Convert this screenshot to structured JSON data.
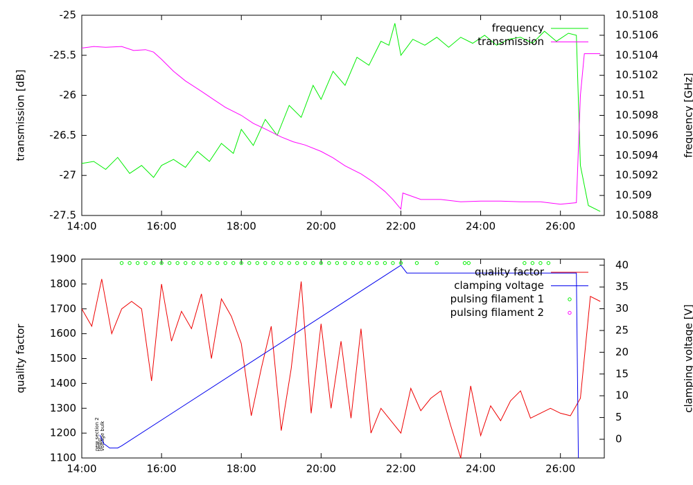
{
  "chart_data": [
    {
      "type": "line",
      "y_label": "transmission [dB]",
      "y2_label": "frequency [GHz]",
      "xlim": [
        14,
        27.1
      ],
      "xticks": [
        {
          "value": 14,
          "label": "14:00"
        },
        {
          "value": 16,
          "label": "16:00"
        },
        {
          "value": 18,
          "label": "18:00"
        },
        {
          "value": 20,
          "label": "20:00"
        },
        {
          "value": 22,
          "label": "22:00"
        },
        {
          "value": 24,
          "label": "24:00"
        },
        {
          "value": 26,
          "label": "26:00"
        }
      ],
      "ylim": [
        -27.5,
        -25
      ],
      "yticks": [
        -27.5,
        -27,
        -26.5,
        -26,
        -25.5,
        -25
      ],
      "y2lim": [
        10.5088,
        10.5108
      ],
      "y2ticks": [
        10.5088,
        10.509,
        10.5092,
        10.5094,
        10.5096,
        10.5098,
        10.51,
        10.5102,
        10.5104,
        10.5106,
        10.5108
      ],
      "legend": "top-right",
      "grid": false,
      "series": [
        {
          "name": "frequency",
          "color": "#00ee00",
          "axis": "y2",
          "x": [
            14.0,
            14.3,
            14.6,
            14.9,
            15.2,
            15.5,
            15.8,
            16.0,
            16.3,
            16.6,
            16.9,
            17.2,
            17.5,
            17.8,
            18.0,
            18.3,
            18.6,
            18.9,
            19.2,
            19.5,
            19.8,
            20.0,
            20.3,
            20.6,
            20.9,
            21.2,
            21.5,
            21.7,
            21.85,
            22.0,
            22.3,
            22.6,
            22.9,
            23.2,
            23.5,
            23.8,
            24.1,
            24.4,
            24.7,
            25.0,
            25.3,
            25.6,
            25.9,
            26.2,
            26.4,
            26.5,
            26.7,
            27.0
          ],
          "values": [
            10.50932,
            10.50934,
            10.50926,
            10.50938,
            10.50922,
            10.5093,
            10.50918,
            10.5093,
            10.50936,
            10.50928,
            10.50944,
            10.50934,
            10.50952,
            10.50942,
            10.50966,
            10.5095,
            10.50976,
            10.5096,
            10.5099,
            10.50978,
            10.5101,
            10.50996,
            10.51024,
            10.5101,
            10.51038,
            10.5103,
            10.51054,
            10.5105,
            10.51072,
            10.5104,
            10.51056,
            10.5105,
            10.51058,
            10.51048,
            10.51058,
            10.51052,
            10.5106,
            10.5105,
            10.51056,
            10.51058,
            10.51052,
            10.51064,
            10.51054,
            10.51062,
            10.5106,
            10.5093,
            10.5089,
            10.50884
          ]
        },
        {
          "name": "transmission",
          "color": "#ff00ff",
          "axis": "y",
          "x": [
            14.0,
            14.3,
            14.6,
            15.0,
            15.3,
            15.6,
            15.8,
            16.0,
            16.3,
            16.6,
            17.0,
            17.3,
            17.6,
            18.0,
            18.3,
            18.6,
            19.0,
            19.3,
            19.6,
            20.0,
            20.3,
            20.6,
            21.0,
            21.3,
            21.6,
            21.8,
            22.0,
            22.05,
            22.5,
            23.0,
            23.5,
            24.0,
            24.5,
            25.0,
            25.5,
            26.0,
            26.4,
            26.5,
            26.6,
            27.0
          ],
          "values": [
            -25.41,
            -25.39,
            -25.4,
            -25.39,
            -25.44,
            -25.43,
            -25.46,
            -25.55,
            -25.7,
            -25.82,
            -25.95,
            -26.05,
            -26.15,
            -26.25,
            -26.35,
            -26.42,
            -26.52,
            -26.58,
            -26.62,
            -26.7,
            -26.78,
            -26.88,
            -26.98,
            -27.08,
            -27.2,
            -27.3,
            -27.42,
            -27.22,
            -27.3,
            -27.3,
            -27.33,
            -27.32,
            -27.32,
            -27.33,
            -27.33,
            -27.36,
            -27.34,
            -26.0,
            -25.48,
            -25.48
          ]
        }
      ]
    },
    {
      "type": "line",
      "y_label": "quality factor",
      "y2_label": "clamping voltage [V]",
      "xlim": [
        14,
        27.1
      ],
      "xticks": [
        {
          "value": 14,
          "label": "14:00"
        },
        {
          "value": 16,
          "label": "16:00"
        },
        {
          "value": 18,
          "label": "18:00"
        },
        {
          "value": 20,
          "label": "20:00"
        },
        {
          "value": 22,
          "label": "22:00"
        },
        {
          "value": 24,
          "label": "24:00"
        },
        {
          "value": 26,
          "label": "26:00"
        }
      ],
      "ylim": [
        1100,
        1900
      ],
      "yticks": [
        1100,
        1200,
        1300,
        1400,
        1500,
        1600,
        1700,
        1800,
        1900
      ],
      "y2lim": [
        -4.3,
        41.4
      ],
      "y2ticks": [
        0,
        5,
        10,
        15,
        20,
        25,
        30,
        35,
        40
      ],
      "legend": "top-right",
      "grid": false,
      "annotations": [
        {
          "text": "new section 2",
          "x": 14.38
        },
        {
          "text": "temp",
          "x": 14.45
        },
        {
          "text": "voltage bulk",
          "x": 14.52
        }
      ],
      "series": [
        {
          "name": "quality factor",
          "color": "#ee0000",
          "axis": "y",
          "x": [
            14.0,
            14.25,
            14.5,
            14.75,
            15.0,
            15.25,
            15.5,
            15.75,
            16.0,
            16.25,
            16.5,
            16.75,
            17.0,
            17.25,
            17.5,
            17.75,
            18.0,
            18.25,
            18.5,
            18.75,
            19.0,
            19.25,
            19.5,
            19.75,
            20.0,
            20.25,
            20.5,
            20.75,
            21.0,
            21.25,
            21.5,
            21.75,
            22.0,
            22.25,
            22.5,
            22.75,
            23.0,
            23.25,
            23.5,
            23.75,
            24.0,
            24.25,
            24.5,
            24.75,
            25.0,
            25.25,
            25.5,
            25.75,
            26.0,
            26.25,
            26.5,
            26.75,
            27.0
          ],
          "values": [
            1700,
            1630,
            1820,
            1600,
            1700,
            1730,
            1700,
            1410,
            1800,
            1570,
            1690,
            1620,
            1760,
            1500,
            1740,
            1670,
            1560,
            1270,
            1460,
            1630,
            1210,
            1460,
            1810,
            1280,
            1640,
            1300,
            1570,
            1260,
            1620,
            1200,
            1300,
            1250,
            1200,
            1380,
            1290,
            1340,
            1370,
            1230,
            1100,
            1390,
            1190,
            1310,
            1250,
            1330,
            1370,
            1260,
            1280,
            1300,
            1280,
            1270,
            1340,
            1750,
            1730
          ]
        },
        {
          "name": "clamping voltage",
          "color": "#0000ee",
          "axis": "y2",
          "x": [
            14.45,
            14.55,
            14.7,
            14.9,
            15.0,
            22.0,
            22.15,
            26.4,
            26.45
          ],
          "values": [
            1,
            -1,
            -2,
            -2,
            -1.5,
            40,
            38.2,
            38.2,
            -4.3
          ]
        },
        {
          "name": "pulsing filament 1",
          "color": "#00ee00",
          "axis": "y2",
          "mode": "points",
          "x": [
            15.0,
            15.2,
            15.4,
            15.6,
            15.8,
            16.0,
            16.2,
            16.4,
            16.6,
            16.8,
            17.0,
            17.2,
            17.4,
            17.6,
            17.8,
            18.0,
            18.2,
            18.4,
            18.6,
            18.8,
            19.0,
            19.2,
            19.4,
            19.6,
            19.8,
            20.0,
            20.2,
            20.4,
            20.6,
            20.8,
            21.0,
            21.2,
            21.4,
            21.6,
            21.8,
            22.0,
            22.4,
            22.9,
            23.6,
            23.7,
            25.1,
            25.3,
            25.5,
            25.7
          ],
          "values": [
            40.5,
            40.5,
            40.5,
            40.5,
            40.5,
            40.5,
            40.5,
            40.5,
            40.5,
            40.5,
            40.5,
            40.5,
            40.5,
            40.5,
            40.5,
            40.5,
            40.5,
            40.5,
            40.5,
            40.5,
            40.5,
            40.5,
            40.5,
            40.5,
            40.5,
            40.5,
            40.5,
            40.5,
            40.5,
            40.5,
            40.5,
            40.5,
            40.5,
            40.5,
            40.5,
            40.5,
            40.5,
            40.5,
            40.5,
            40.5,
            40.5,
            40.5,
            40.5,
            40.5
          ]
        },
        {
          "name": "pulsing filament 2",
          "color": "#ff00ff",
          "axis": "y2",
          "mode": "points",
          "x": [],
          "values": []
        }
      ]
    }
  ]
}
